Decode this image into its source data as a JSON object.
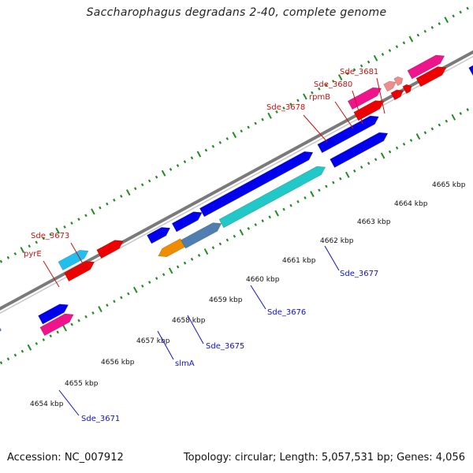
{
  "title": "Saccharophagus degradans 2-40, complete genome",
  "accession": "Accession: NC_007912",
  "topology": "Topology: circular; Length: 5,057,531 bp; Genes: 4,056",
  "colors": {
    "backbone": "#8c8c8c",
    "ticks": "#228b22",
    "label_forward": "#cc1111",
    "label_reverse": "#1111cc",
    "blue": "#0000ee",
    "cyan": "#20c8c8",
    "steel": "#4f7fb0",
    "orange": "#f08c00",
    "red": "#ee0000",
    "magenta": "#f0148c",
    "pink": "#f08c8c",
    "sky": "#20bff0",
    "gray": "#666666"
  },
  "scale": {
    "tick_labels": [
      "4654 kbp",
      "4655 kbp",
      "4656 kbp",
      "4657 kbp",
      "4658 kbp",
      "4659 kbp",
      "4660 kbp",
      "4661 kbp",
      "4662 kbp",
      "4663 kbp",
      "4664 kbp",
      "4665 kbp"
    ]
  },
  "gene_labels": {
    "forward": [
      "Sde_3673",
      "pyrE",
      "Sde_3678",
      "rpmB",
      "Sde_3680",
      "Sde_3681"
    ],
    "reverse": [
      "Sde_3671",
      "slmA",
      "Sde_3675",
      "Sde_3676",
      "Sde_3677"
    ]
  }
}
